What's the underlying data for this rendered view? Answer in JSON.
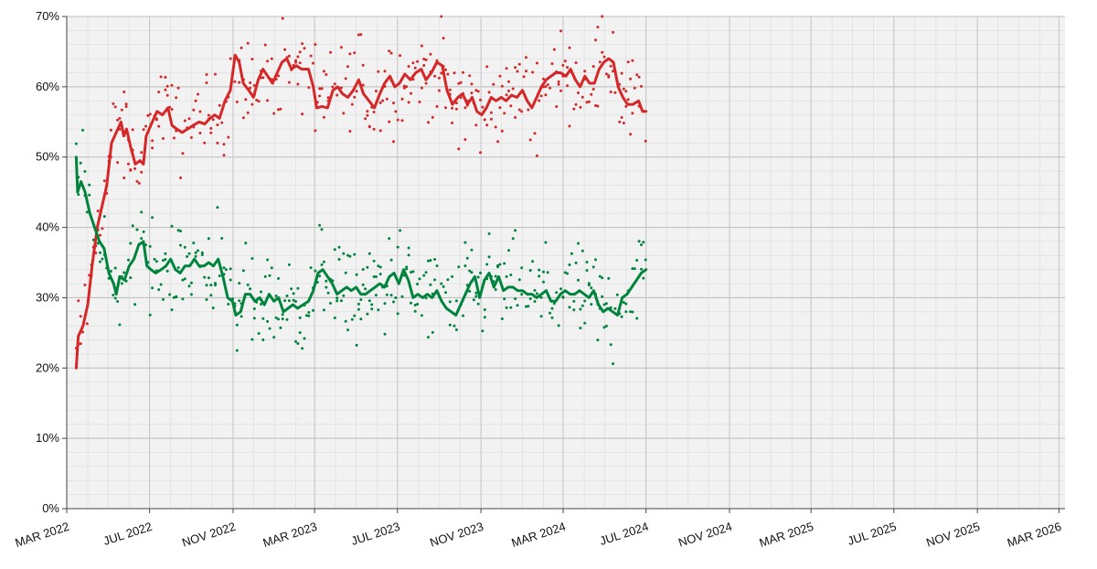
{
  "chart_data": {
    "type": "line",
    "title": "",
    "xlabel": "",
    "ylabel": "",
    "ylim": [
      0,
      70
    ],
    "yticks": [
      "0%",
      "10%",
      "20%",
      "30%",
      "40%",
      "50%",
      "60%",
      "70%"
    ],
    "xlim": [
      "2022-03-01",
      "2026-03-10"
    ],
    "xticks": [
      {
        "date": "2022-03-01",
        "label": "MAR 2022"
      },
      {
        "date": "2022-07-01",
        "label": "JUL 2022"
      },
      {
        "date": "2022-11-01",
        "label": "NOV 2022"
      },
      {
        "date": "2023-03-01",
        "label": "MAR 2023"
      },
      {
        "date": "2023-07-01",
        "label": "JUL 2023"
      },
      {
        "date": "2023-11-01",
        "label": "NOV 2023"
      },
      {
        "date": "2024-03-01",
        "label": "MAR 2024"
      },
      {
        "date": "2024-07-01",
        "label": "JUL 2024"
      },
      {
        "date": "2024-11-01",
        "label": "NOV 2024"
      },
      {
        "date": "2025-03-01",
        "label": "MAR 2025"
      },
      {
        "date": "2025-07-01",
        "label": "JUL 2025"
      },
      {
        "date": "2025-11-01",
        "label": "NOV 2025"
      },
      {
        "date": "2026-03-01",
        "label": "MAR 2026"
      }
    ],
    "grid": true,
    "series": [
      {
        "color": "#d62728",
        "trend": [
          [
            "2022-03-15",
            20
          ],
          [
            "2022-03-18",
            24.5
          ],
          [
            "2022-03-25",
            26
          ],
          [
            "2022-04-01",
            29
          ],
          [
            "2022-04-08",
            35
          ],
          [
            "2022-04-15",
            40
          ],
          [
            "2022-04-22",
            43
          ],
          [
            "2022-04-29",
            46
          ],
          [
            "2022-05-06",
            52
          ],
          [
            "2022-05-13",
            53.5
          ],
          [
            "2022-05-20",
            55
          ],
          [
            "2022-05-24",
            53
          ],
          [
            "2022-05-28",
            54
          ],
          [
            "2022-06-03",
            51.5
          ],
          [
            "2022-06-10",
            49
          ],
          [
            "2022-06-17",
            49.5
          ],
          [
            "2022-06-22",
            49
          ],
          [
            "2022-06-26",
            53
          ],
          [
            "2022-07-05",
            55
          ],
          [
            "2022-07-12",
            56.5
          ],
          [
            "2022-07-20",
            56
          ],
          [
            "2022-07-28",
            57
          ],
          [
            "2022-08-03",
            54.5
          ],
          [
            "2022-08-10",
            54
          ],
          [
            "2022-08-18",
            53.5
          ],
          [
            "2022-08-26",
            54
          ],
          [
            "2022-09-03",
            54.5
          ],
          [
            "2022-09-12",
            55
          ],
          [
            "2022-09-20",
            54.7
          ],
          [
            "2022-09-28",
            55.5
          ],
          [
            "2022-10-05",
            56
          ],
          [
            "2022-10-12",
            55.5
          ],
          [
            "2022-10-20",
            58
          ],
          [
            "2022-10-28",
            59.5
          ],
          [
            "2022-11-04",
            64.5
          ],
          [
            "2022-11-10",
            63.5
          ],
          [
            "2022-11-16",
            60.5
          ],
          [
            "2022-11-24",
            59.5
          ],
          [
            "2022-12-01",
            58.5
          ],
          [
            "2022-12-08",
            61
          ],
          [
            "2022-12-15",
            62.5
          ],
          [
            "2022-12-22",
            61.5
          ],
          [
            "2022-12-29",
            60.5
          ],
          [
            "2023-01-05",
            62
          ],
          [
            "2023-01-12",
            63.5
          ],
          [
            "2023-01-19",
            64
          ],
          [
            "2023-01-26",
            62.5
          ],
          [
            "2023-02-02",
            63
          ],
          [
            "2023-02-10",
            62.5
          ],
          [
            "2023-02-20",
            62.5
          ],
          [
            "2023-02-27",
            60
          ],
          [
            "2023-03-04",
            57
          ],
          [
            "2023-03-12",
            57.2
          ],
          [
            "2023-03-20",
            57
          ],
          [
            "2023-03-28",
            59.5
          ],
          [
            "2023-04-04",
            60
          ],
          [
            "2023-04-11",
            59
          ],
          [
            "2023-04-19",
            58.5
          ],
          [
            "2023-04-27",
            59.5
          ],
          [
            "2023-05-05",
            61
          ],
          [
            "2023-05-12",
            59
          ],
          [
            "2023-05-20",
            58
          ],
          [
            "2023-05-28",
            57
          ],
          [
            "2023-06-05",
            59
          ],
          [
            "2023-06-12",
            60.5
          ],
          [
            "2023-06-20",
            61.5
          ],
          [
            "2023-06-27",
            60
          ],
          [
            "2023-07-04",
            60.5
          ],
          [
            "2023-07-12",
            61.8
          ],
          [
            "2023-07-20",
            61
          ],
          [
            "2023-07-28",
            62
          ],
          [
            "2023-08-05",
            62.5
          ],
          [
            "2023-08-12",
            61
          ],
          [
            "2023-08-20",
            62
          ],
          [
            "2023-08-28",
            63.5
          ],
          [
            "2023-09-05",
            63
          ],
          [
            "2023-09-12",
            59.5
          ],
          [
            "2023-09-20",
            57.5
          ],
          [
            "2023-09-28",
            58.5
          ],
          [
            "2023-10-05",
            59
          ],
          [
            "2023-10-12",
            57.5
          ],
          [
            "2023-10-19",
            58.5
          ],
          [
            "2023-10-26",
            56.5
          ],
          [
            "2023-11-02",
            56
          ],
          [
            "2023-11-09",
            57
          ],
          [
            "2023-11-16",
            58.5
          ],
          [
            "2023-11-23",
            58
          ],
          [
            "2023-12-01",
            58.5
          ],
          [
            "2023-12-08",
            58
          ],
          [
            "2023-12-16",
            58.8
          ],
          [
            "2023-12-24",
            58.5
          ],
          [
            "2024-01-01",
            59.5
          ],
          [
            "2024-01-08",
            58
          ],
          [
            "2024-01-15",
            57
          ],
          [
            "2024-01-22",
            58.5
          ],
          [
            "2024-01-29",
            60
          ],
          [
            "2024-02-05",
            61
          ],
          [
            "2024-02-12",
            61.5
          ],
          [
            "2024-02-19",
            62
          ],
          [
            "2024-02-26",
            62
          ],
          [
            "2024-03-05",
            61.5
          ],
          [
            "2024-03-12",
            62.5
          ],
          [
            "2024-03-19",
            61
          ],
          [
            "2024-03-26",
            60
          ],
          [
            "2024-04-02",
            61.5
          ],
          [
            "2024-04-09",
            60.5
          ],
          [
            "2024-04-16",
            60.5
          ],
          [
            "2024-04-23",
            62.5
          ],
          [
            "2024-04-30",
            63.5
          ],
          [
            "2024-05-07",
            64
          ],
          [
            "2024-05-14",
            63.5
          ],
          [
            "2024-05-21",
            60
          ],
          [
            "2024-05-28",
            58.5
          ],
          [
            "2024-06-04",
            57.5
          ],
          [
            "2024-06-12",
            57.5
          ],
          [
            "2024-06-20",
            58
          ],
          [
            "2024-06-26",
            56.5
          ],
          [
            "2024-07-01",
            56.5
          ]
        ]
      },
      {
        "color": "#00843d",
        "trend": [
          [
            "2022-03-15",
            50
          ],
          [
            "2022-03-17",
            45
          ],
          [
            "2022-03-22",
            46.5
          ],
          [
            "2022-03-28",
            45
          ],
          [
            "2022-04-04",
            42
          ],
          [
            "2022-04-11",
            40
          ],
          [
            "2022-04-18",
            38
          ],
          [
            "2022-04-25",
            37
          ],
          [
            "2022-05-02",
            33.5
          ],
          [
            "2022-05-09",
            32
          ],
          [
            "2022-05-13",
            30.5
          ],
          [
            "2022-05-18",
            33
          ],
          [
            "2022-05-25",
            32.5
          ],
          [
            "2022-06-01",
            34.5
          ],
          [
            "2022-06-08",
            35.5
          ],
          [
            "2022-06-15",
            37.5
          ],
          [
            "2022-06-22",
            38
          ],
          [
            "2022-06-27",
            34.5
          ],
          [
            "2022-07-03",
            34
          ],
          [
            "2022-07-10",
            33.5
          ],
          [
            "2022-07-18",
            34
          ],
          [
            "2022-07-25",
            34.5
          ],
          [
            "2022-08-01",
            35.5
          ],
          [
            "2022-08-08",
            34
          ],
          [
            "2022-08-15",
            33.5
          ],
          [
            "2022-08-22",
            34.5
          ],
          [
            "2022-08-29",
            34.5
          ],
          [
            "2022-09-05",
            35.5
          ],
          [
            "2022-09-12",
            34.5
          ],
          [
            "2022-09-19",
            34.5
          ],
          [
            "2022-09-26",
            35
          ],
          [
            "2022-10-03",
            34.5
          ],
          [
            "2022-10-10",
            35.5
          ],
          [
            "2022-10-17",
            33
          ],
          [
            "2022-10-24",
            30
          ],
          [
            "2022-10-31",
            29.5
          ],
          [
            "2022-11-05",
            27.5
          ],
          [
            "2022-11-12",
            28
          ],
          [
            "2022-11-19",
            30.5
          ],
          [
            "2022-11-26",
            30.5
          ],
          [
            "2022-12-03",
            29.5
          ],
          [
            "2022-12-10",
            30
          ],
          [
            "2022-12-17",
            29
          ],
          [
            "2022-12-24",
            30.5
          ],
          [
            "2022-12-31",
            29.5
          ],
          [
            "2023-01-07",
            30
          ],
          [
            "2023-01-14",
            28
          ],
          [
            "2023-01-21",
            28.5
          ],
          [
            "2023-01-28",
            29
          ],
          [
            "2023-02-04",
            28.5
          ],
          [
            "2023-02-12",
            29
          ],
          [
            "2023-02-20",
            29.5
          ],
          [
            "2023-02-27",
            31
          ],
          [
            "2023-03-06",
            33.5
          ],
          [
            "2023-03-13",
            34
          ],
          [
            "2023-03-20",
            33
          ],
          [
            "2023-03-27",
            32
          ],
          [
            "2023-04-03",
            30.5
          ],
          [
            "2023-04-10",
            31
          ],
          [
            "2023-04-17",
            31.5
          ],
          [
            "2023-04-24",
            31
          ],
          [
            "2023-05-01",
            31.5
          ],
          [
            "2023-05-08",
            30.5
          ],
          [
            "2023-05-15",
            30.5
          ],
          [
            "2023-05-22",
            31
          ],
          [
            "2023-05-29",
            31.5
          ],
          [
            "2023-06-05",
            32
          ],
          [
            "2023-06-12",
            31.5
          ],
          [
            "2023-06-19",
            33
          ],
          [
            "2023-06-26",
            33.5
          ],
          [
            "2023-07-03",
            32
          ],
          [
            "2023-07-10",
            34
          ],
          [
            "2023-07-17",
            32.5
          ],
          [
            "2023-07-24",
            30
          ],
          [
            "2023-07-31",
            30.5
          ],
          [
            "2023-08-07",
            30
          ],
          [
            "2023-08-14",
            30.5
          ],
          [
            "2023-08-21",
            30
          ],
          [
            "2023-08-28",
            31
          ],
          [
            "2023-09-04",
            29.5
          ],
          [
            "2023-09-11",
            28.5
          ],
          [
            "2023-09-18",
            28
          ],
          [
            "2023-09-25",
            27.5
          ],
          [
            "2023-10-02",
            29
          ],
          [
            "2023-10-09",
            30.5
          ],
          [
            "2023-10-16",
            32
          ],
          [
            "2023-10-23",
            33
          ],
          [
            "2023-10-30",
            30
          ],
          [
            "2023-11-06",
            32.5
          ],
          [
            "2023-11-13",
            33.5
          ],
          [
            "2023-11-20",
            31.5
          ],
          [
            "2023-11-27",
            33
          ],
          [
            "2023-12-04",
            31
          ],
          [
            "2023-12-11",
            31.5
          ],
          [
            "2023-12-18",
            31.5
          ],
          [
            "2023-12-25",
            31
          ],
          [
            "2024-01-01",
            31
          ],
          [
            "2024-01-08",
            30.5
          ],
          [
            "2024-01-15",
            30.5
          ],
          [
            "2024-01-22",
            30
          ],
          [
            "2024-01-29",
            30.5
          ],
          [
            "2024-02-05",
            31
          ],
          [
            "2024-02-12",
            29.5
          ],
          [
            "2024-02-19",
            29.5
          ],
          [
            "2024-02-26",
            30.5
          ],
          [
            "2024-03-04",
            31
          ],
          [
            "2024-03-11",
            30.5
          ],
          [
            "2024-03-18",
            30.5
          ],
          [
            "2024-03-25",
            31
          ],
          [
            "2024-04-01",
            30.5
          ],
          [
            "2024-04-08",
            30
          ],
          [
            "2024-04-15",
            31
          ],
          [
            "2024-04-22",
            29
          ],
          [
            "2024-04-29",
            28
          ],
          [
            "2024-05-06",
            28.5
          ],
          [
            "2024-05-13",
            28
          ],
          [
            "2024-05-20",
            27.5
          ],
          [
            "2024-05-27",
            30
          ],
          [
            "2024-06-03",
            30.5
          ],
          [
            "2024-06-10",
            31.5
          ],
          [
            "2024-06-17",
            32.5
          ],
          [
            "2024-06-24",
            33.5
          ],
          [
            "2024-07-01",
            34
          ]
        ]
      }
    ]
  }
}
